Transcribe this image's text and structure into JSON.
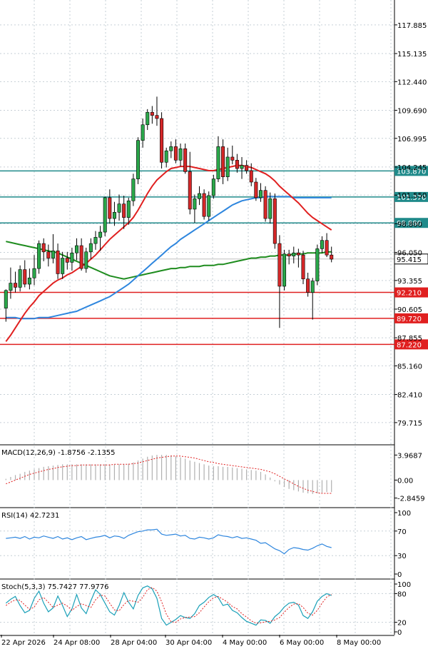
{
  "chart_data": [
    {
      "type": "candlestick",
      "panel": "price",
      "y_ticks": [
        "117.885",
        "115.135",
        "112.440",
        "109.690",
        "106.995",
        "104.245",
        "101.550",
        "98.800",
        "96.050",
        "93.355",
        "90.605",
        "87.855",
        "85.160",
        "82.410",
        "79.715"
      ],
      "ylim": [
        78.2,
        120.0
      ],
      "bull_color": "#2aa84a",
      "bear_color": "#d62728",
      "candles": [
        [
          90.7,
          92.5,
          89.4,
          92.4
        ],
        [
          92.4,
          94.6,
          91.6,
          93.1
        ],
        [
          93.1,
          94.2,
          92.2,
          92.7
        ],
        [
          92.7,
          94.8,
          92.3,
          94.4
        ],
        [
          94.4,
          95.3,
          92.7,
          93.0
        ],
        [
          93.0,
          94.5,
          92.5,
          93.6
        ],
        [
          93.6,
          95.8,
          92.9,
          94.5
        ],
        [
          94.5,
          97.2,
          94.0,
          96.9
        ],
        [
          96.9,
          97.4,
          95.2,
          96.1
        ],
        [
          96.1,
          96.8,
          94.7,
          95.5
        ],
        [
          95.5,
          97.8,
          95.0,
          96.2
        ],
        [
          96.2,
          96.9,
          93.5,
          94.0
        ],
        [
          94.0,
          96.1,
          93.5,
          95.5
        ],
        [
          95.5,
          96.1,
          94.4,
          95.1
        ],
        [
          95.1,
          96.5,
          94.3,
          96.0
        ],
        [
          96.0,
          97.4,
          95.3,
          96.7
        ],
        [
          96.7,
          97.4,
          94.3,
          94.5
        ],
        [
          94.5,
          96.5,
          94.1,
          96.1
        ],
        [
          96.1,
          97.4,
          95.4,
          96.9
        ],
        [
          96.9,
          98.1,
          96.3,
          97.5
        ],
        [
          97.5,
          98.6,
          96.2,
          98.0
        ],
        [
          98.0,
          101.4,
          97.6,
          101.3
        ],
        [
          101.3,
          102.1,
          98.8,
          99.3
        ],
        [
          99.3,
          100.9,
          98.6,
          99.9
        ],
        [
          99.9,
          101.6,
          99.1,
          100.7
        ],
        [
          100.7,
          101.5,
          98.3,
          99.4
        ],
        [
          99.4,
          101.3,
          98.7,
          101.0
        ],
        [
          101.0,
          103.6,
          100.5,
          103.1
        ],
        [
          103.1,
          107.1,
          102.6,
          106.8
        ],
        [
          106.8,
          108.9,
          106.1,
          108.3
        ],
        [
          108.3,
          109.8,
          107.8,
          109.5
        ],
        [
          109.5,
          110.1,
          108.4,
          109.2
        ],
        [
          109.2,
          111.0,
          108.2,
          108.9
        ],
        [
          108.9,
          109.5,
          104.1,
          104.7
        ],
        [
          104.7,
          106.1,
          104.2,
          105.8
        ],
        [
          105.8,
          106.7,
          105.1,
          106.2
        ],
        [
          106.2,
          106.9,
          104.6,
          104.9
        ],
        [
          104.9,
          106.5,
          104.3,
          106.0
        ],
        [
          106.0,
          106.5,
          103.6,
          103.8
        ],
        [
          103.8,
          105.7,
          99.7,
          100.2
        ],
        [
          100.2,
          101.6,
          98.9,
          101.2
        ],
        [
          101.2,
          102.4,
          100.6,
          101.7
        ],
        [
          101.7,
          102.1,
          99.2,
          99.5
        ],
        [
          99.5,
          101.9,
          99.1,
          101.5
        ],
        [
          101.5,
          103.5,
          101.2,
          103.1
        ],
        [
          103.1,
          107.2,
          102.8,
          106.2
        ],
        [
          106.2,
          106.9,
          102.6,
          103.3
        ],
        [
          103.3,
          106.1,
          102.9,
          105.2
        ],
        [
          105.2,
          106.3,
          104.5,
          104.9
        ],
        [
          104.9,
          105.5,
          103.7,
          104.1
        ],
        [
          104.1,
          105.2,
          103.1,
          104.4
        ],
        [
          104.4,
          104.9,
          103.6,
          103.9
        ],
        [
          103.9,
          104.6,
          102.4,
          102.8
        ],
        [
          102.8,
          103.2,
          101.0,
          101.3
        ],
        [
          101.3,
          102.7,
          100.9,
          102.0
        ],
        [
          102.0,
          102.4,
          99.0,
          99.3
        ],
        [
          99.3,
          101.8,
          98.8,
          101.2
        ],
        [
          101.2,
          101.7,
          96.4,
          96.9
        ],
        [
          96.9,
          97.7,
          88.8,
          92.8
        ],
        [
          92.8,
          96.3,
          92.4,
          95.9
        ],
        [
          95.9,
          96.3,
          94.9,
          95.7
        ],
        [
          95.7,
          96.6,
          95.0,
          96.0
        ],
        [
          96.0,
          96.4,
          94.6,
          95.8
        ],
        [
          95.8,
          96.2,
          93.0,
          93.5
        ],
        [
          93.5,
          94.1,
          91.8,
          92.2
        ],
        [
          92.2,
          93.6,
          89.6,
          93.3
        ],
        [
          93.3,
          96.8,
          92.9,
          96.4
        ],
        [
          96.4,
          97.6,
          96.0,
          97.2
        ],
        [
          97.2,
          97.9,
          95.6,
          95.8
        ],
        [
          95.8,
          96.6,
          95.1,
          95.4
        ]
      ],
      "ma_fast": [
        87.5,
        88.1,
        88.8,
        89.5,
        90.2,
        90.8,
        91.3,
        91.9,
        92.3,
        92.7,
        93.1,
        93.4,
        93.6,
        93.9,
        94.1,
        94.4,
        94.7,
        95.0,
        95.4,
        95.8,
        96.3,
        96.8,
        97.3,
        97.7,
        98.1,
        98.5,
        98.9,
        99.4,
        100.1,
        100.9,
        101.7,
        102.4,
        103.0,
        103.4,
        103.8,
        104.1,
        104.2,
        104.3,
        104.3,
        104.3,
        104.2,
        104.1,
        104.0,
        103.9,
        103.9,
        104.0,
        104.1,
        104.2,
        104.3,
        104.4,
        104.4,
        104.3,
        104.2,
        104.0,
        103.8,
        103.6,
        103.3,
        102.9,
        102.4,
        102.0,
        101.6,
        101.2,
        100.8,
        100.3,
        99.8,
        99.4,
        99.1,
        98.8,
        98.5,
        98.2
      ],
      "ma_mid": [
        89.8,
        89.8,
        89.8,
        89.7,
        89.7,
        89.7,
        89.7,
        89.8,
        89.8,
        89.8,
        89.9,
        90.0,
        90.1,
        90.2,
        90.3,
        90.4,
        90.6,
        90.8,
        91.0,
        91.2,
        91.4,
        91.6,
        91.8,
        92.1,
        92.4,
        92.7,
        93.0,
        93.4,
        93.8,
        94.2,
        94.6,
        95.0,
        95.4,
        95.8,
        96.2,
        96.6,
        96.9,
        97.3,
        97.6,
        97.9,
        98.2,
        98.5,
        98.8,
        99.1,
        99.4,
        99.7,
        100.0,
        100.3,
        100.6,
        100.8,
        101.0,
        101.1,
        101.2,
        101.3,
        101.3,
        101.4,
        101.4,
        101.4,
        101.4,
        101.4,
        101.4,
        101.3,
        101.3,
        101.3,
        101.3,
        101.3,
        101.3,
        101.3,
        101.3,
        101.3
      ],
      "ma_slow": [
        97.1,
        97.0,
        96.9,
        96.8,
        96.7,
        96.6,
        96.5,
        96.4,
        96.3,
        96.2,
        96.1,
        96.0,
        95.8,
        95.6,
        95.4,
        95.2,
        95.0,
        94.8,
        94.6,
        94.4,
        94.2,
        94.0,
        93.8,
        93.7,
        93.6,
        93.5,
        93.6,
        93.7,
        93.8,
        93.9,
        94.0,
        94.1,
        94.2,
        94.3,
        94.4,
        94.5,
        94.5,
        94.6,
        94.6,
        94.7,
        94.7,
        94.7,
        94.8,
        94.8,
        94.8,
        94.9,
        94.9,
        95.0,
        95.1,
        95.2,
        95.3,
        95.4,
        95.5,
        95.5,
        95.6,
        95.6,
        95.7,
        95.7,
        95.8,
        95.8,
        95.8,
        95.9,
        95.9,
        95.9,
        96.0,
        96.0,
        96.0,
        96.0,
        96.1,
        96.1
      ],
      "levels": [
        {
          "value": 103.87,
          "label": "103.870",
          "color": "#1f8a8a"
        },
        {
          "value": 101.37,
          "label": "101.370",
          "color": "#1f8a8a"
        },
        {
          "value": 98.88,
          "label": "98.880",
          "color": "#1f8a8a"
        },
        {
          "value": 92.21,
          "label": "92.210",
          "color": "#e02020"
        },
        {
          "value": 89.72,
          "label": "89.720",
          "color": "#e02020"
        },
        {
          "value": 87.22,
          "label": "87.220",
          "color": "#e02020"
        }
      ],
      "current_price": {
        "value": 95.415,
        "label": "95.415"
      }
    },
    {
      "type": "histogram",
      "panel": "macd",
      "title": "MACD(12,26,9) -1.8756 -2.1355",
      "y_ticks": [
        "3.9687",
        "0.00",
        "-2.8459"
      ],
      "tick_values": [
        3.9687,
        0,
        -2.8459
      ],
      "ylim": [
        -3.8,
        4.8
      ],
      "hist": [
        0.2,
        0.5,
        0.8,
        1.0,
        1.3,
        1.5,
        1.7,
        1.9,
        2.1,
        2.2,
        2.3,
        2.4,
        2.5,
        2.5,
        2.5,
        2.5,
        2.5,
        2.5,
        2.5,
        2.5,
        2.5,
        2.5,
        2.5,
        2.5,
        2.5,
        2.5,
        2.6,
        2.8,
        3.1,
        3.4,
        3.7,
        3.9,
        4.0,
        4.0,
        4.0,
        3.9,
        3.8,
        3.6,
        3.4,
        3.1,
        2.9,
        2.7,
        2.5,
        2.3,
        2.2,
        2.2,
        2.1,
        2.1,
        2.0,
        1.9,
        1.8,
        1.7,
        1.6,
        1.5,
        1.3,
        0.9,
        0.4,
        -0.2,
        -0.7,
        -1.1,
        -1.4,
        -1.6,
        -1.8,
        -2.0,
        -2.1,
        -2.2,
        -2.1,
        -2.0,
        -1.9,
        -1.9
      ],
      "signal": [
        -0.6,
        -0.3,
        0.0,
        0.3,
        0.6,
        0.9,
        1.1,
        1.3,
        1.5,
        1.7,
        1.8,
        2.0,
        2.1,
        2.2,
        2.3,
        2.3,
        2.4,
        2.4,
        2.4,
        2.4,
        2.4,
        2.4,
        2.4,
        2.5,
        2.5,
        2.5,
        2.5,
        2.6,
        2.7,
        2.9,
        3.1,
        3.3,
        3.5,
        3.6,
        3.7,
        3.8,
        3.8,
        3.8,
        3.7,
        3.6,
        3.5,
        3.3,
        3.1,
        2.9,
        2.8,
        2.6,
        2.5,
        2.4,
        2.3,
        2.2,
        2.1,
        2.0,
        1.9,
        1.8,
        1.7,
        1.5,
        1.3,
        1.0,
        0.6,
        0.2,
        -0.2,
        -0.6,
        -1.0,
        -1.3,
        -1.6,
        -1.8,
        -2.0,
        -2.1,
        -2.1,
        -2.1
      ]
    },
    {
      "type": "line",
      "panel": "rsi",
      "title": "RSI(14) 42.7231",
      "y_ticks": [
        "100",
        "70",
        "30",
        "0"
      ],
      "tick_values": [
        100,
        70,
        30,
        0
      ],
      "ylim": [
        0,
        100
      ],
      "values": [
        58,
        59,
        60,
        58,
        61,
        57,
        60,
        59,
        62,
        60,
        58,
        61,
        57,
        59,
        56,
        59,
        61,
        56,
        58,
        60,
        61,
        63,
        59,
        62,
        61,
        58,
        63,
        66,
        69,
        70,
        72,
        72,
        73,
        65,
        63,
        64,
        65,
        62,
        63,
        58,
        57,
        60,
        59,
        57,
        59,
        64,
        62,
        61,
        59,
        61,
        58,
        59,
        57,
        55,
        50,
        51,
        46,
        41,
        38,
        33,
        40,
        43,
        42,
        40,
        39,
        42,
        46,
        49,
        45,
        43
      ]
    },
    {
      "type": "line",
      "panel": "stoch",
      "title": "Stoch(5,3,3) 75.7427 77.9776",
      "y_ticks": [
        "100",
        "80",
        "20",
        "0"
      ],
      "tick_values": [
        100,
        80,
        20,
        0
      ],
      "ylim": [
        0,
        100
      ],
      "k": [
        60,
        68,
        74,
        55,
        40,
        45,
        70,
        85,
        60,
        42,
        50,
        75,
        55,
        32,
        48,
        78,
        50,
        38,
        65,
        88,
        78,
        60,
        42,
        35,
        55,
        82,
        62,
        48,
        76,
        92,
        96,
        90,
        70,
        28,
        14,
        20,
        26,
        34,
        30,
        28,
        38,
        55,
        62,
        72,
        78,
        72,
        55,
        58,
        45,
        40,
        30,
        22,
        18,
        14,
        25,
        24,
        18,
        32,
        40,
        52,
        60,
        62,
        56,
        34,
        28,
        42,
        64,
        74,
        80,
        76
      ],
      "d": [
        55,
        62,
        67,
        66,
        56,
        47,
        52,
        67,
        72,
        62,
        51,
        56,
        60,
        54,
        45,
        53,
        59,
        55,
        51,
        67,
        77,
        75,
        60,
        46,
        44,
        57,
        66,
        64,
        62,
        72,
        88,
        93,
        85,
        63,
        37,
        21,
        20,
        27,
        30,
        31,
        32,
        40,
        52,
        63,
        71,
        74,
        68,
        62,
        53,
        48,
        38,
        31,
        23,
        18,
        19,
        21,
        22,
        25,
        30,
        41,
        51,
        58,
        59,
        51,
        39,
        35,
        45,
        60,
        73,
        78
      ]
    },
    {
      "type": "axis",
      "panel": "time",
      "x_labels": [
        "22 Apr 2026",
        "24 Apr 08:00",
        "28 Apr 04:00",
        "30 Apr 04:00",
        "4 May 00:00",
        "6 May 00:00",
        "8 May 00:00"
      ]
    }
  ]
}
